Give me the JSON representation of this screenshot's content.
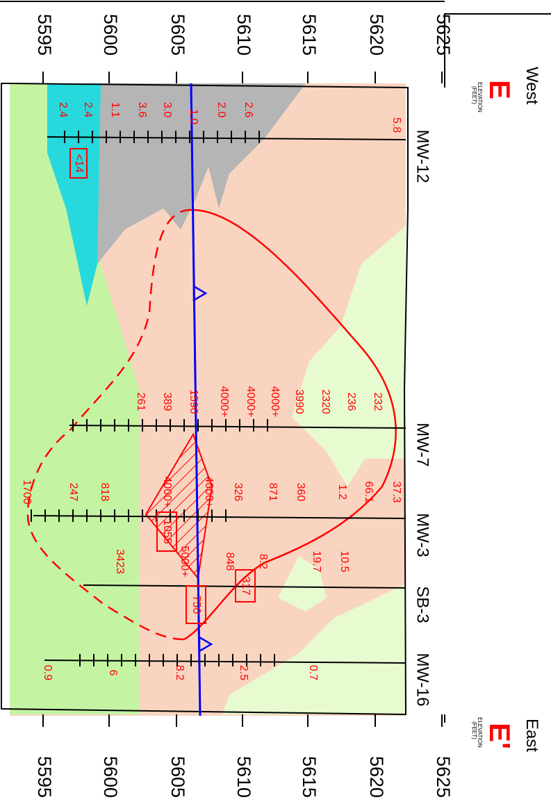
{
  "elevation_label": "ELEVATION",
  "feet_label": "(FEET)",
  "ends": {
    "west": {
      "direction": "West",
      "letter": "E"
    },
    "east": {
      "direction": "East",
      "letter": "E'"
    }
  },
  "elevations": [
    "5595",
    "5600",
    "5605",
    "5610",
    "5615",
    "5620",
    "5625"
  ],
  "wells": [
    {
      "name": "MW-12",
      "values": [
        "5.8",
        "2.6",
        "2.0",
        "1.0",
        "3.0",
        "3.6",
        "1.1",
        "2.4",
        "2.4"
      ],
      "boxed": [
        "<14"
      ]
    },
    {
      "name": "MW-7",
      "values": [
        "232",
        "236",
        "2320",
        "3990",
        "4000+",
        "4000+",
        "4000+",
        "1590",
        "389",
        "261"
      ],
      "boxed": []
    },
    {
      "name": "MW-3",
      "values": [
        "37.3",
        "66.1",
        "1.2",
        "360",
        "871",
        "326",
        "4000+",
        "4000+",
        "818",
        "247",
        "1700"
      ],
      "boxed": [
        "1055"
      ]
    },
    {
      "name": "SB-3",
      "values": [
        "10.5",
        "19.7",
        "8.2",
        "848",
        "5000+",
        "3423"
      ],
      "boxed": [
        "317",
        "750"
      ]
    },
    {
      "name": "MW-16",
      "values": [
        "0.7",
        "2.5",
        "8.2",
        "6",
        "0.9"
      ],
      "boxed": []
    }
  ],
  "colors": {
    "fill_sand": "#f9d5c1",
    "fill_light": "#e8fbd0",
    "fill_green": "#c4f4a2",
    "fill_gray": "#b5b5b5",
    "fill_cyan": "#27d8dc",
    "water_table": "#0000ff",
    "plume": "#ff0000",
    "text_red": "#ff0000"
  },
  "icons": [
    "water-table-triangle-icon"
  ]
}
